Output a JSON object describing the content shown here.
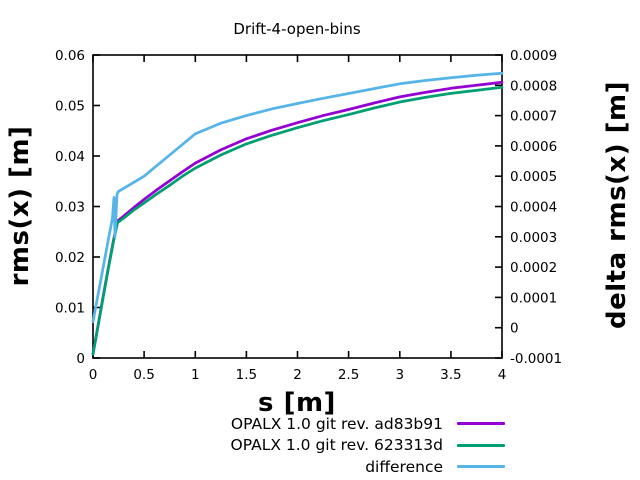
{
  "title": "Drift-4-open-bins",
  "colors": {
    "series1": "#9400d3",
    "series2": "#009e73",
    "series3": "#56b4e9",
    "axis": "#000000",
    "background": "#ffffff"
  },
  "chart_data": {
    "type": "line",
    "title": "Drift-4-open-bins",
    "xlabel": "s [m]",
    "ylabel": "rms(x) [m]",
    "y2label": "delta rms(x) [m]",
    "xlim": [
      0,
      4
    ],
    "ylim": [
      0,
      0.06
    ],
    "y2lim": [
      -0.0001,
      0.0009
    ],
    "grid": false,
    "legend_position": "below-right",
    "x_ticks": {
      "values": [
        0,
        0.5,
        1,
        1.5,
        2,
        2.5,
        3,
        3.5,
        4
      ],
      "labels": [
        "0",
        "0.5",
        "1",
        "1.5",
        "2",
        "2.5",
        "3",
        "3.5",
        "4"
      ]
    },
    "y_ticks": {
      "values": [
        0,
        0.01,
        0.02,
        0.03,
        0.04,
        0.05,
        0.06
      ],
      "labels": [
        "0",
        "0.01",
        "0.02",
        "0.03",
        "0.04",
        "0.05",
        "0.06"
      ]
    },
    "y2_ticks": {
      "values": [
        -0.0001,
        0,
        0.0001,
        0.0002,
        0.0003,
        0.0004,
        0.0005,
        0.0006,
        0.0007,
        0.0008,
        0.0009
      ],
      "labels": [
        "-0.0001",
        "0",
        "0.0001",
        "0.0002",
        "0.0003",
        "0.0004",
        "0.0005",
        "0.0006",
        "0.0007",
        "0.0008",
        "0.0009"
      ]
    },
    "series": [
      {
        "name": "OPALX 1.0 git rev. ad83b91",
        "color": "#9400d3",
        "axis": "left",
        "x": [
          0,
          0.05,
          0.1,
          0.15,
          0.2,
          0.24,
          0.3,
          0.4,
          0.5,
          0.625,
          0.75,
          0.875,
          1.0,
          1.25,
          1.5,
          1.75,
          2.0,
          2.25,
          2.5,
          2.75,
          3.0,
          3.25,
          3.5,
          3.75,
          4.0
        ],
        "y": [
          0.0008,
          0.0065,
          0.0122,
          0.0178,
          0.0233,
          0.0271,
          0.0281,
          0.0298,
          0.0314,
          0.0333,
          0.0351,
          0.0369,
          0.0386,
          0.0412,
          0.0434,
          0.0451,
          0.0466,
          0.048,
          0.0492,
          0.0505,
          0.0517,
          0.0526,
          0.0534,
          0.054,
          0.0546
        ]
      },
      {
        "name": "OPALX 1.0 git rev. 623313d",
        "color": "#009e73",
        "axis": "left",
        "x": [
          0,
          0.05,
          0.1,
          0.15,
          0.2,
          0.24,
          0.3,
          0.4,
          0.5,
          0.625,
          0.75,
          0.875,
          1.0,
          1.25,
          1.5,
          1.75,
          2.0,
          2.25,
          2.5,
          2.75,
          3.0,
          3.25,
          3.5,
          3.75,
          4.0
        ],
        "y": [
          0.0008,
          0.0064,
          0.0121,
          0.0177,
          0.0231,
          0.0268,
          0.0277,
          0.0293,
          0.0307,
          0.0325,
          0.0342,
          0.036,
          0.0376,
          0.0402,
          0.0424,
          0.0441,
          0.0456,
          0.047,
          0.0482,
          0.0495,
          0.0507,
          0.0516,
          0.0524,
          0.053,
          0.0536
        ]
      },
      {
        "name": "difference",
        "color": "#56b4e9",
        "axis": "right",
        "x": [
          0,
          0.05,
          0.1,
          0.15,
          0.19,
          0.205,
          0.215,
          0.235,
          0.25,
          0.3,
          0.4,
          0.5,
          0.625,
          0.75,
          0.875,
          1.0,
          1.25,
          1.5,
          1.75,
          2.0,
          2.25,
          2.5,
          2.75,
          3.0,
          3.25,
          3.5,
          3.75,
          4.0
        ],
        "y": [
          2e-05,
          0.00011,
          0.0002,
          0.00029,
          0.00036,
          0.00043,
          0.0003,
          0.00044,
          0.00045,
          0.00046,
          0.00048,
          0.0005,
          0.000535,
          0.00057,
          0.000605,
          0.00064,
          0.000675,
          0.0007,
          0.000722,
          0.00074,
          0.000757,
          0.000773,
          0.000789,
          0.000805,
          0.000816,
          0.000825,
          0.000833,
          0.00084
        ]
      }
    ]
  },
  "legend": {
    "items": [
      {
        "label": "OPALX 1.0 git rev. ad83b91"
      },
      {
        "label": "OPALX 1.0 git rev. 623313d"
      },
      {
        "label": "difference"
      }
    ]
  }
}
